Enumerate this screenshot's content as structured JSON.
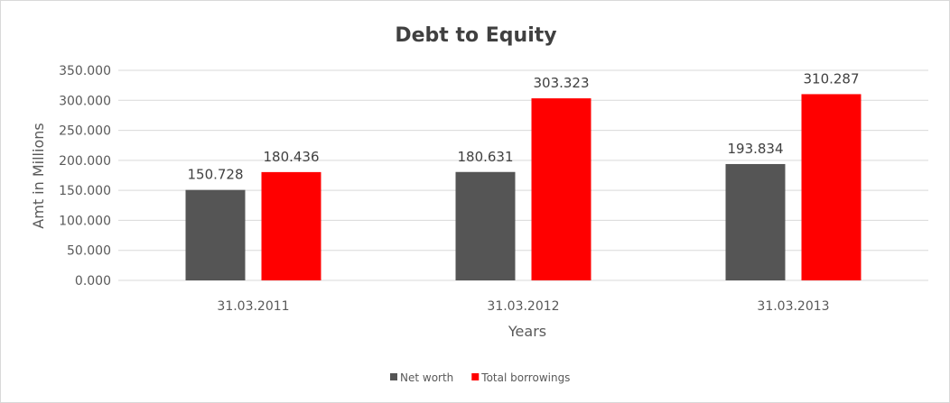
{
  "chart_data": {
    "type": "bar",
    "title": "Debt to Equity",
    "xlabel": "Years",
    "ylabel": "Amt in Millions",
    "categories": [
      "31.03.2011",
      "31.03.2012",
      "31.03.2013"
    ],
    "series": [
      {
        "name": "Net worth",
        "values": [
          150.728,
          180.631,
          193.834
        ],
        "color": "#555555"
      },
      {
        "name": "Total borrowings",
        "values": [
          180.436,
          303.323,
          310.287
        ],
        "color": "#ff0000"
      }
    ],
    "data_labels": [
      [
        "150.728",
        "180.631",
        "193.834"
      ],
      [
        "180.436",
        "303.323",
        "310.287"
      ]
    ],
    "ylim": [
      0,
      350
    ],
    "yticks": [
      "0.000",
      "50.000",
      "100.000",
      "150.000",
      "200.000",
      "250.000",
      "300.000",
      "350.000"
    ],
    "grid": true,
    "legend": "bottom"
  }
}
